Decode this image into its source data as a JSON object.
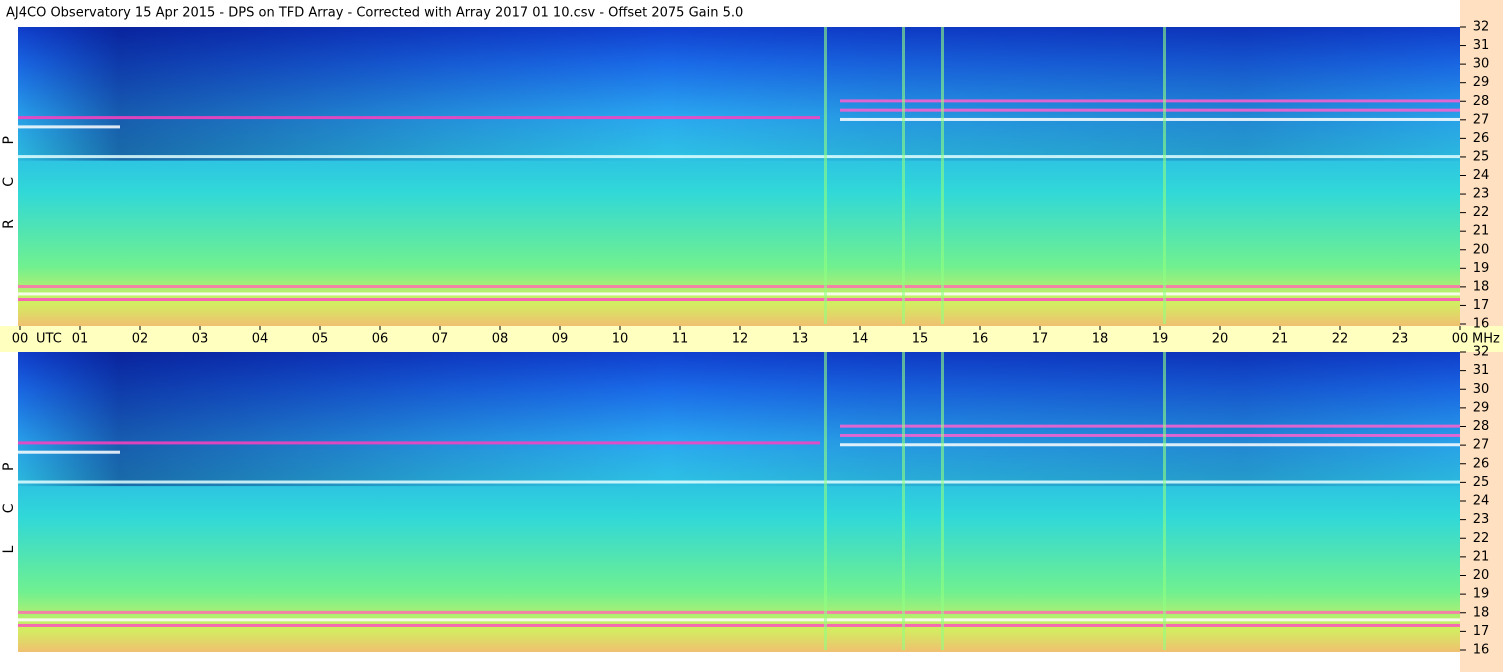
{
  "chart_data": {
    "type": "spectrogram",
    "title": "AJ4CO Observatory  15 Apr 2015  -  DPS on TFD Array  -  Corrected with Array 2017 01 10.csv  -  Offset 2075  Gain 5.0",
    "x_label": "UTC",
    "y_label": "MHz",
    "xlim": [
      0,
      24
    ],
    "xticks": [
      {
        "value": 0,
        "label": "00"
      },
      {
        "value": 1,
        "label": "01"
      },
      {
        "value": 2,
        "label": "02"
      },
      {
        "value": 3,
        "label": "03"
      },
      {
        "value": 4,
        "label": "04"
      },
      {
        "value": 5,
        "label": "05"
      },
      {
        "value": 6,
        "label": "06"
      },
      {
        "value": 7,
        "label": "07"
      },
      {
        "value": 8,
        "label": "08"
      },
      {
        "value": 9,
        "label": "09"
      },
      10,
      11,
      12,
      13,
      14,
      15,
      16,
      17,
      18,
      19,
      20,
      21,
      22,
      23,
      {
        "value": 24,
        "label": "00"
      }
    ],
    "ylim": [
      16,
      32
    ],
    "yticks": [
      16,
      17,
      18,
      19,
      20,
      21,
      22,
      23,
      24,
      25,
      26,
      27,
      28,
      29,
      30,
      31,
      32
    ],
    "panels": [
      {
        "name": "R C P"
      },
      {
        "name": "L C P"
      }
    ]
  }
}
